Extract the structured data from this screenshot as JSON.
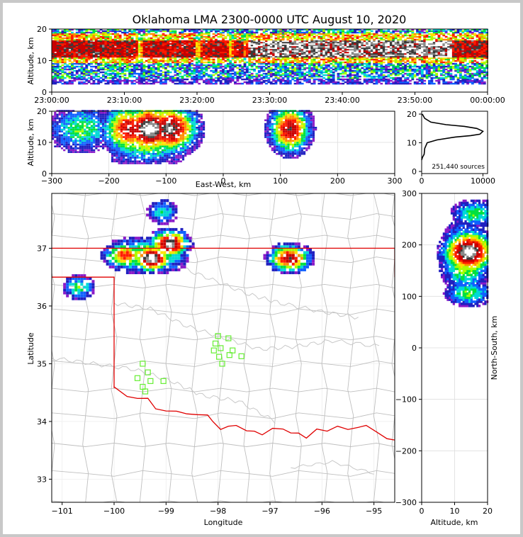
{
  "title": "Oklahoma LMA 2300-0000 UTC August 10, 2020",
  "source_count": "251,440 sources",
  "colors": {
    "state_border": "#e00000",
    "county_lines": "#bfbfbf",
    "stations": "#66ee33",
    "grid": "#dddddd"
  },
  "chart_data": [
    {
      "type": "heatmap",
      "name": "altitude-vs-time",
      "ylabel": "Altitude, km",
      "ylim": [
        0,
        20
      ],
      "yticks": [
        "0",
        "10",
        "20"
      ],
      "xticks": [
        "23:00:00",
        "23:10:00",
        "23:20:00",
        "23:30:00",
        "23:40:00",
        "23:50:00",
        "00:00:00"
      ],
      "x_range_minutes": [
        0,
        60
      ],
      "density_core_km": [
        11,
        16
      ],
      "gaps_minutes": [
        12,
        20,
        24.5,
        26.5
      ]
    },
    {
      "type": "heatmap",
      "name": "altitude-vs-east-west",
      "xlabel": "East-West, km",
      "ylabel": "Altitude, km",
      "xlim": [
        -300,
        300
      ],
      "ylim": [
        0,
        20
      ],
      "xticks": [
        "−300",
        "−200",
        "−100",
        "0",
        "100",
        "200",
        "300"
      ],
      "yticks": [
        "0",
        "10",
        "20"
      ],
      "clusters": [
        {
          "x": -250,
          "z": 14,
          "level": 0.35
        },
        {
          "x": -165,
          "z": 14,
          "level": 0.75
        },
        {
          "x": -130,
          "z": 14,
          "level": 1.0
        },
        {
          "x": -95,
          "z": 14,
          "level": 0.9
        },
        {
          "x": 115,
          "z": 14,
          "level": 0.8
        }
      ]
    },
    {
      "type": "line",
      "name": "altitude-histogram",
      "xlim": [
        0,
        10000
      ],
      "ylim": [
        0,
        20
      ],
      "xticks": [
        "0",
        "10000"
      ],
      "yticks": [
        "0",
        "10",
        "20"
      ],
      "x": [
        0,
        150,
        400,
        500,
        900,
        2500,
        5500,
        8000,
        9500,
        10000,
        9000,
        7000,
        4000,
        1500,
        500,
        100
      ],
      "y": [
        4,
        5,
        6,
        8,
        10,
        11,
        12,
        12.5,
        13,
        14,
        15,
        15.7,
        16.3,
        17.2,
        18.5,
        20
      ]
    },
    {
      "type": "heatmap",
      "name": "plan-view-map",
      "xlabel": "Longitude",
      "ylabel": "Latitude",
      "xlim": [
        -101.2,
        -94.6
      ],
      "ylim": [
        32.6,
        37.95
      ],
      "xticks": [
        "−101",
        "−100",
        "−99",
        "−98",
        "−97",
        "−96",
        "−95"
      ],
      "yticks": [
        "33",
        "34",
        "35",
        "36",
        "37"
      ],
      "clusters": [
        {
          "lon": -100.7,
          "lat": 36.3,
          "level": 0.35
        },
        {
          "lon": -99.8,
          "lat": 36.85,
          "level": 0.65
        },
        {
          "lon": -99.3,
          "lat": 36.8,
          "level": 1.0
        },
        {
          "lon": -98.95,
          "lat": 37.05,
          "level": 0.95
        },
        {
          "lon": -99.1,
          "lat": 37.6,
          "level": 0.3
        },
        {
          "lon": -96.65,
          "lat": 36.8,
          "level": 0.8
        }
      ],
      "stations": [
        [
          -99.45,
          35.0
        ],
        [
          -99.35,
          34.85
        ],
        [
          -99.55,
          34.75
        ],
        [
          -99.3,
          34.7
        ],
        [
          -99.45,
          34.6
        ],
        [
          -99.4,
          34.52
        ],
        [
          -99.05,
          34.7
        ],
        [
          -98.0,
          35.48
        ],
        [
          -97.8,
          35.44
        ],
        [
          -98.05,
          35.35
        ],
        [
          -97.95,
          35.27
        ],
        [
          -98.08,
          35.23
        ],
        [
          -97.72,
          35.23
        ],
        [
          -97.98,
          35.12
        ],
        [
          -97.78,
          35.15
        ],
        [
          -97.55,
          35.13
        ],
        [
          -97.92,
          35.0
        ]
      ]
    },
    {
      "type": "heatmap",
      "name": "north-south-vs-altitude",
      "xlabel": "Altitude, km",
      "ylabel": "North-South, km",
      "xlim": [
        0,
        20
      ],
      "ylim": [
        -300,
        300
      ],
      "xticks": [
        "0",
        "10",
        "20"
      ],
      "yticks": [
        "300",
        "200",
        "100",
        "0",
        "−100",
        "−200",
        "−300"
      ],
      "clusters": [
        {
          "z": 14,
          "y": 185,
          "level": 1.0
        },
        {
          "z": 14,
          "y": 105,
          "level": 0.35
        },
        {
          "z": 16,
          "y": 260,
          "level": 0.35
        }
      ]
    }
  ]
}
